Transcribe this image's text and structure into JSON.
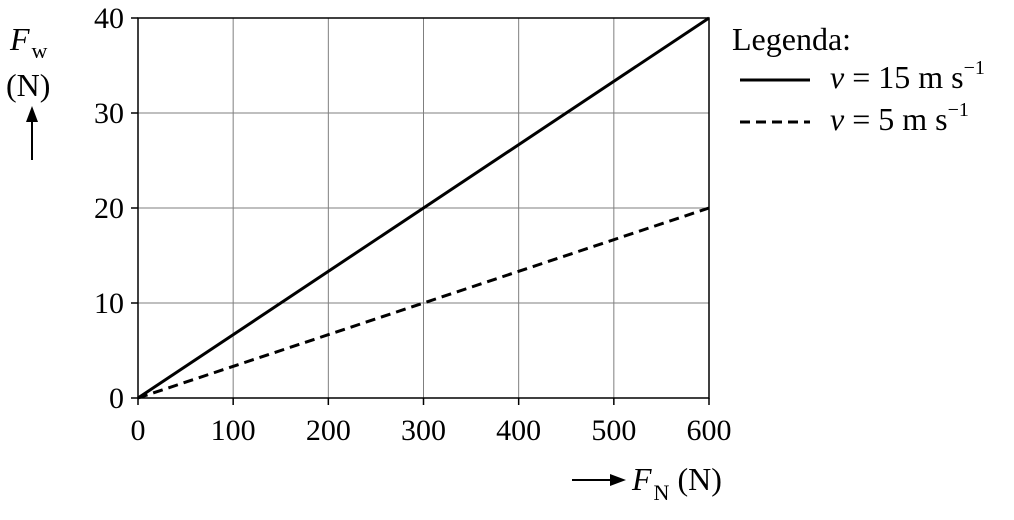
{
  "chart_data": {
    "type": "line",
    "x": [
      0,
      600
    ],
    "series": [
      {
        "name": "v = 15 m s⁻¹",
        "values": [
          0,
          40
        ],
        "style": "solid"
      },
      {
        "name": "v = 5 m s⁻¹",
        "values": [
          0,
          20
        ],
        "style": "dashed"
      }
    ],
    "xlim": [
      0,
      600
    ],
    "ylim": [
      0,
      40
    ],
    "x_ticks": [
      "0",
      "100",
      "200",
      "300",
      "400",
      "500",
      "600"
    ],
    "y_ticks": [
      "0",
      "10",
      "20",
      "30",
      "40"
    ],
    "grid": true,
    "legend_placement": "right",
    "legend_title": "Legenda:",
    "ylabel": {
      "symbol": "F",
      "subscript": "w",
      "unit": "(N)"
    },
    "xlabel": {
      "symbol": "F",
      "subscript": "N",
      "unit": "(N)"
    },
    "legend_items": [
      {
        "var": "v",
        "text": " = 15 m s",
        "sup": "−1"
      },
      {
        "var": "v",
        "text": " = 5 m s",
        "sup": "−1"
      }
    ],
    "colors": {
      "line": "#000000",
      "grid": "#7f7f7f"
    }
  }
}
